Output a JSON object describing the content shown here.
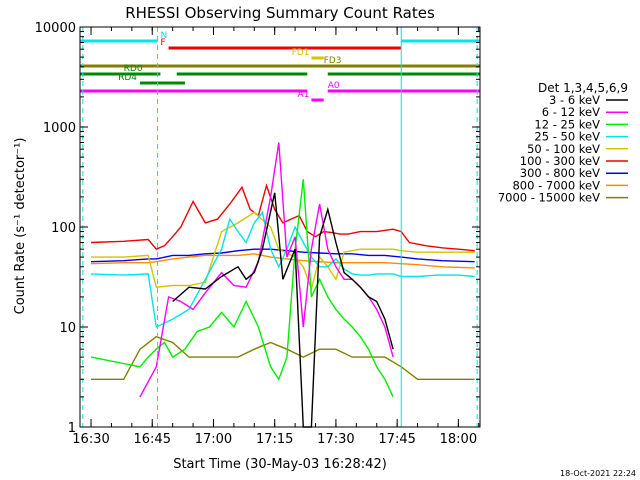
{
  "chart_data": {
    "type": "line",
    "title": "RHESSI Observing Summary Count Rates",
    "xlabel": "Start Time (30-May-03 16:28:42)",
    "ylabel": "Count Rate (s⁻¹ detector⁻¹)",
    "yscale": "log",
    "ylim": [
      1,
      10000
    ],
    "xlim_minutes": [
      -2.7,
      95.3
    ],
    "x_ticks": [
      {
        "label": "16:30",
        "m": 0
      },
      {
        "label": "16:45",
        "m": 15
      },
      {
        "label": "17:00",
        "m": 30
      },
      {
        "label": "17:15",
        "m": 45
      },
      {
        "label": "17:30",
        "m": 60
      },
      {
        "label": "17:45",
        "m": 75
      },
      {
        "label": "18:00",
        "m": 90
      }
    ],
    "y_ticks": [
      {
        "label": "1",
        "v": 1
      },
      {
        "label": "10",
        "v": 10
      },
      {
        "label": "100",
        "v": 100
      },
      {
        "label": "1000",
        "v": 1000
      },
      {
        "label": "10000",
        "v": 10000
      }
    ],
    "legend_title": "Det 1,3,4,5,6,9",
    "legend_position": "right",
    "series": [
      {
        "name": "3 - 6 keV",
        "color": "#000000",
        "x": [
          0,
          12,
          16,
          20,
          24,
          28,
          32,
          36,
          38,
          40,
          42,
          45,
          47,
          50,
          52,
          54,
          56,
          58,
          60,
          62,
          64,
          66,
          68,
          70,
          72,
          74,
          76
        ],
        "values": [
          null,
          null,
          null,
          18,
          25,
          24,
          32,
          40,
          30,
          35,
          60,
          220,
          30,
          60,
          1,
          1,
          80,
          150,
          70,
          35,
          30,
          25,
          20,
          18,
          12,
          6,
          null
        ]
      },
      {
        "name": "6 - 12 keV",
        "color": "#ff00ff",
        "x": [
          0,
          12,
          16,
          19,
          22,
          25,
          28,
          32,
          35,
          38,
          41,
          44,
          46,
          48,
          50,
          52,
          54,
          56,
          58,
          60,
          62,
          64,
          66,
          68,
          70,
          72,
          74,
          76
        ],
        "values": [
          null,
          2,
          4,
          20,
          18,
          15,
          22,
          35,
          26,
          25,
          45,
          200,
          700,
          50,
          80,
          10,
          60,
          170,
          60,
          40,
          30,
          30,
          25,
          20,
          15,
          10,
          5,
          null
        ]
      },
      {
        "name": "12 - 25 keV",
        "color": "#00ee00",
        "x": [
          0,
          12,
          14,
          16,
          18,
          20,
          23,
          26,
          29,
          32,
          35,
          38,
          41,
          44,
          46,
          48,
          50,
          52,
          54,
          56,
          58,
          60,
          62,
          64,
          66,
          68,
          70,
          72,
          74,
          76
        ],
        "values": [
          5,
          4,
          5,
          6,
          7,
          5,
          6,
          9,
          10,
          14,
          10,
          18,
          10,
          4,
          3,
          5,
          60,
          300,
          20,
          30,
          20,
          15,
          12,
          10,
          8,
          6,
          4,
          3,
          2,
          null
        ]
      },
      {
        "name": "25 - 50 keV",
        "color": "#00e5e5",
        "x": [
          0,
          8,
          14,
          16,
          20,
          24,
          28,
          32,
          34,
          36,
          38,
          40,
          42,
          44,
          46,
          48,
          50,
          52,
          54,
          56,
          58,
          60,
          62,
          64,
          66,
          68,
          70,
          72,
          74,
          76,
          80,
          85,
          90,
          94
        ],
        "values": [
          34,
          33,
          34,
          10,
          12,
          15,
          30,
          60,
          120,
          90,
          70,
          110,
          140,
          60,
          40,
          60,
          100,
          70,
          50,
          40,
          40,
          48,
          38,
          34,
          33,
          33,
          34,
          34,
          34,
          32,
          32,
          33,
          33,
          32
        ]
      },
      {
        "name": "50 - 100 keV",
        "color": "#d4c400",
        "x": [
          0,
          8,
          14,
          16,
          20,
          24,
          28,
          32,
          36,
          40,
          44,
          46,
          50,
          52,
          54,
          56,
          58,
          60,
          62,
          66,
          70,
          74,
          76,
          80,
          85,
          90,
          94
        ],
        "values": [
          50,
          50,
          52,
          25,
          26,
          26,
          28,
          90,
          110,
          140,
          100,
          60,
          50,
          40,
          24,
          50,
          40,
          30,
          56,
          60,
          60,
          60,
          58,
          56,
          56,
          56,
          56
        ]
      },
      {
        "name": "100 - 300 keV",
        "color": "#ee0000",
        "x": [
          0,
          8,
          14,
          16,
          18,
          20,
          22,
          25,
          28,
          31,
          34,
          37,
          39,
          41,
          43,
          45,
          47,
          49,
          51,
          53,
          55,
          57,
          59,
          61,
          63,
          66,
          70,
          74,
          76,
          78,
          82,
          86,
          90,
          94
        ],
        "values": [
          70,
          72,
          75,
          60,
          65,
          80,
          100,
          180,
          110,
          120,
          170,
          250,
          150,
          130,
          260,
          150,
          110,
          120,
          130,
          90,
          80,
          90,
          88,
          85,
          85,
          90,
          90,
          95,
          90,
          70,
          65,
          62,
          60,
          58
        ]
      },
      {
        "name": "300 - 800 keV",
        "color": "#0000ee",
        "x": [
          0,
          8,
          14,
          16,
          20,
          24,
          28,
          32,
          36,
          40,
          44,
          48,
          52,
          56,
          60,
          64,
          68,
          72,
          76,
          80,
          86,
          94
        ],
        "values": [
          45,
          46,
          48,
          48,
          52,
          52,
          54,
          55,
          58,
          60,
          60,
          58,
          56,
          55,
          54,
          54,
          52,
          52,
          50,
          48,
          46,
          45
        ]
      },
      {
        "name": "800 - 7000 keV",
        "color": "#ff8c00",
        "x": [
          0,
          8,
          14,
          16,
          20,
          24,
          28,
          32,
          36,
          40,
          44,
          48,
          52,
          56,
          60,
          64,
          68,
          72,
          76,
          80,
          86,
          94
        ],
        "values": [
          43,
          44,
          44,
          45,
          48,
          50,
          52,
          52,
          52,
          54,
          50,
          48,
          46,
          45,
          44,
          44,
          44,
          44,
          43,
          42,
          40,
          39
        ]
      },
      {
        "name": "7000 - 15000 keV",
        "color": "#808000",
        "x": [
          0,
          8,
          12,
          16,
          20,
          24,
          28,
          32,
          36,
          40,
          44,
          48,
          52,
          56,
          60,
          64,
          68,
          72,
          76,
          80,
          86,
          94
        ],
        "values": [
          3,
          3,
          6,
          8,
          7,
          5,
          5,
          5,
          5,
          6,
          7,
          6,
          5,
          6,
          6,
          5,
          5,
          5,
          4,
          3,
          3,
          3
        ]
      }
    ],
    "state_bars": [
      {
        "label": "N",
        "color": "#00e5e5",
        "segments": [
          [
            -2.7,
            16.3
          ],
          [
            76,
            95.3
          ]
        ]
      },
      {
        "label": "F",
        "color": "#ee0000",
        "segments": [
          [
            19,
            76
          ]
        ]
      },
      {
        "label": "FD1",
        "color": "#d4c400",
        "segments": [
          [
            54,
            57
          ]
        ]
      },
      {
        "label": "FD3",
        "color": "#808000",
        "segments": [
          [
            -2.7,
            95.3
          ]
        ]
      },
      {
        "label": "RD0",
        "color": "#008800",
        "segments": [
          [
            -2.7,
            17
          ],
          [
            21,
            53
          ],
          [
            58,
            95.3
          ]
        ]
      },
      {
        "label": "RD4",
        "color": "#008800",
        "segments": [
          [
            12,
            23
          ]
        ]
      },
      {
        "label": "A0",
        "color": "#ff00ff",
        "segments": [
          [
            -2.7,
            53
          ],
          [
            58,
            95.3
          ]
        ]
      },
      {
        "label": "A1",
        "color": "#ff00ff",
        "segments": [
          [
            54,
            57
          ]
        ]
      }
    ],
    "night_markers_minutes": [
      -2,
      16.3,
      76,
      94.6
    ],
    "timestamp": "18-Oct-2021 22:24"
  }
}
